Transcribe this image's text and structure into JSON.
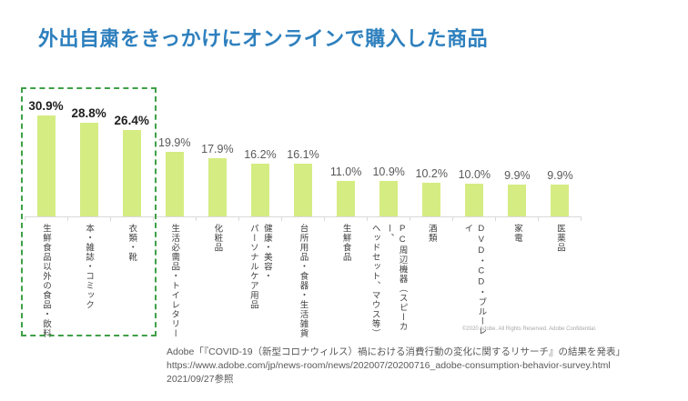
{
  "title": "外出自粛をきっかけにオンラインで購入した商品",
  "chart_data": {
    "type": "bar",
    "title": "外出自粛をきっかけにオンラインで購入した商品",
    "categories": [
      "生鮮食品以外の食品・飲料",
      "本・雑誌・コミック",
      "衣類・靴",
      "生活必需品・トイレタリー",
      "化粧品",
      "健康・美容・\nパーソナルケア用品",
      "台所用品・食器・生活雑貨",
      "生鮮食品",
      "PC周辺機器（スピーカー、\nヘッドセット、マウス等）",
      "酒類",
      "DVD・CD・ブルーレイ",
      "家電",
      "医薬品"
    ],
    "values": [
      30.9,
      28.8,
      26.4,
      19.9,
      17.9,
      16.2,
      16.1,
      11.0,
      10.9,
      10.2,
      10.0,
      9.9,
      9.9
    ],
    "value_labels": [
      "30.9%",
      "28.8%",
      "26.4%",
      "19.9%",
      "17.9%",
      "16.2%",
      "16.1%",
      "11.0%",
      "10.9%",
      "10.2%",
      "10.0%",
      "9.9%",
      "9.9%"
    ],
    "xlabel": "",
    "ylabel": "",
    "ylim": [
      0,
      35
    ],
    "grid": false,
    "legend": false,
    "bar_color": "#d5ec82",
    "highlight_first_n": 3,
    "highlight_border_color": "#3fa047"
  },
  "copyright": "©2020 Adobe. All Rights Reserved. Adobe Confidential.",
  "source": {
    "lines": [
      "Adobe「『COVID-19（新型コロナウィルス）禍における消費行動の変化に関するリサーチ』の結果を発表」",
      "https://www.adobe.com/jp/news-room/news/202007/20200716_adobe-consumption-behavior-survey.html",
      "2021/09/27参照"
    ]
  },
  "colors": {
    "title_blue": "#2e80be",
    "axis_gray": "#d9d9d9",
    "value_label_gray": "#595959",
    "value_label_dark": "#1f1f1f"
  }
}
